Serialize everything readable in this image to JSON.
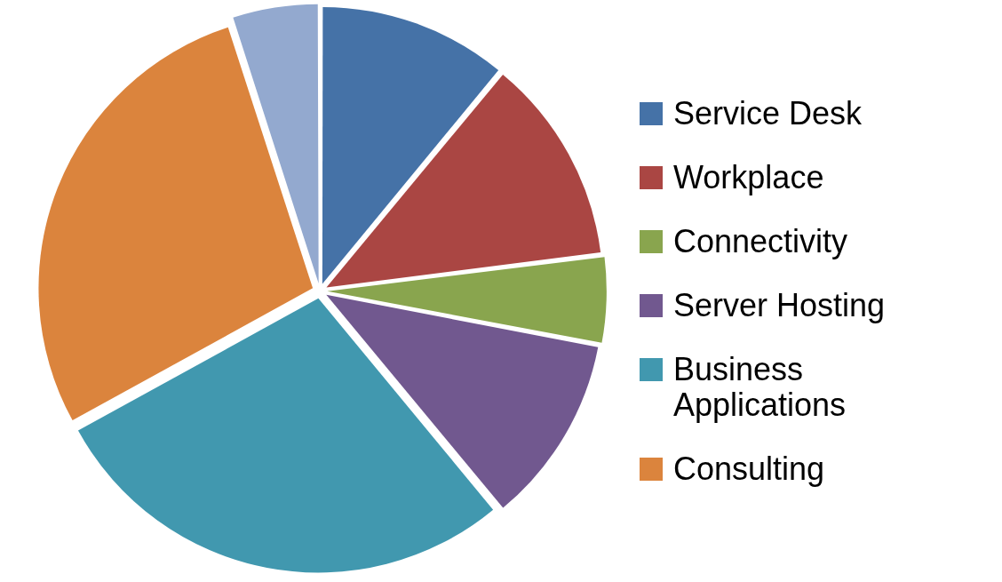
{
  "chart_data": {
    "type": "pie",
    "categories": [
      "Service Desk",
      "Workplace",
      "Connectivity",
      "Server Hosting",
      "Business Applications",
      "Consulting",
      null
    ],
    "values": [
      11,
      12,
      5,
      11,
      28,
      28,
      5
    ],
    "colors": [
      "#4572a7",
      "#aa4643",
      "#89a54e",
      "#71588f",
      "#4198af",
      "#db843d",
      "#93a9cf"
    ],
    "legend": "right"
  }
}
